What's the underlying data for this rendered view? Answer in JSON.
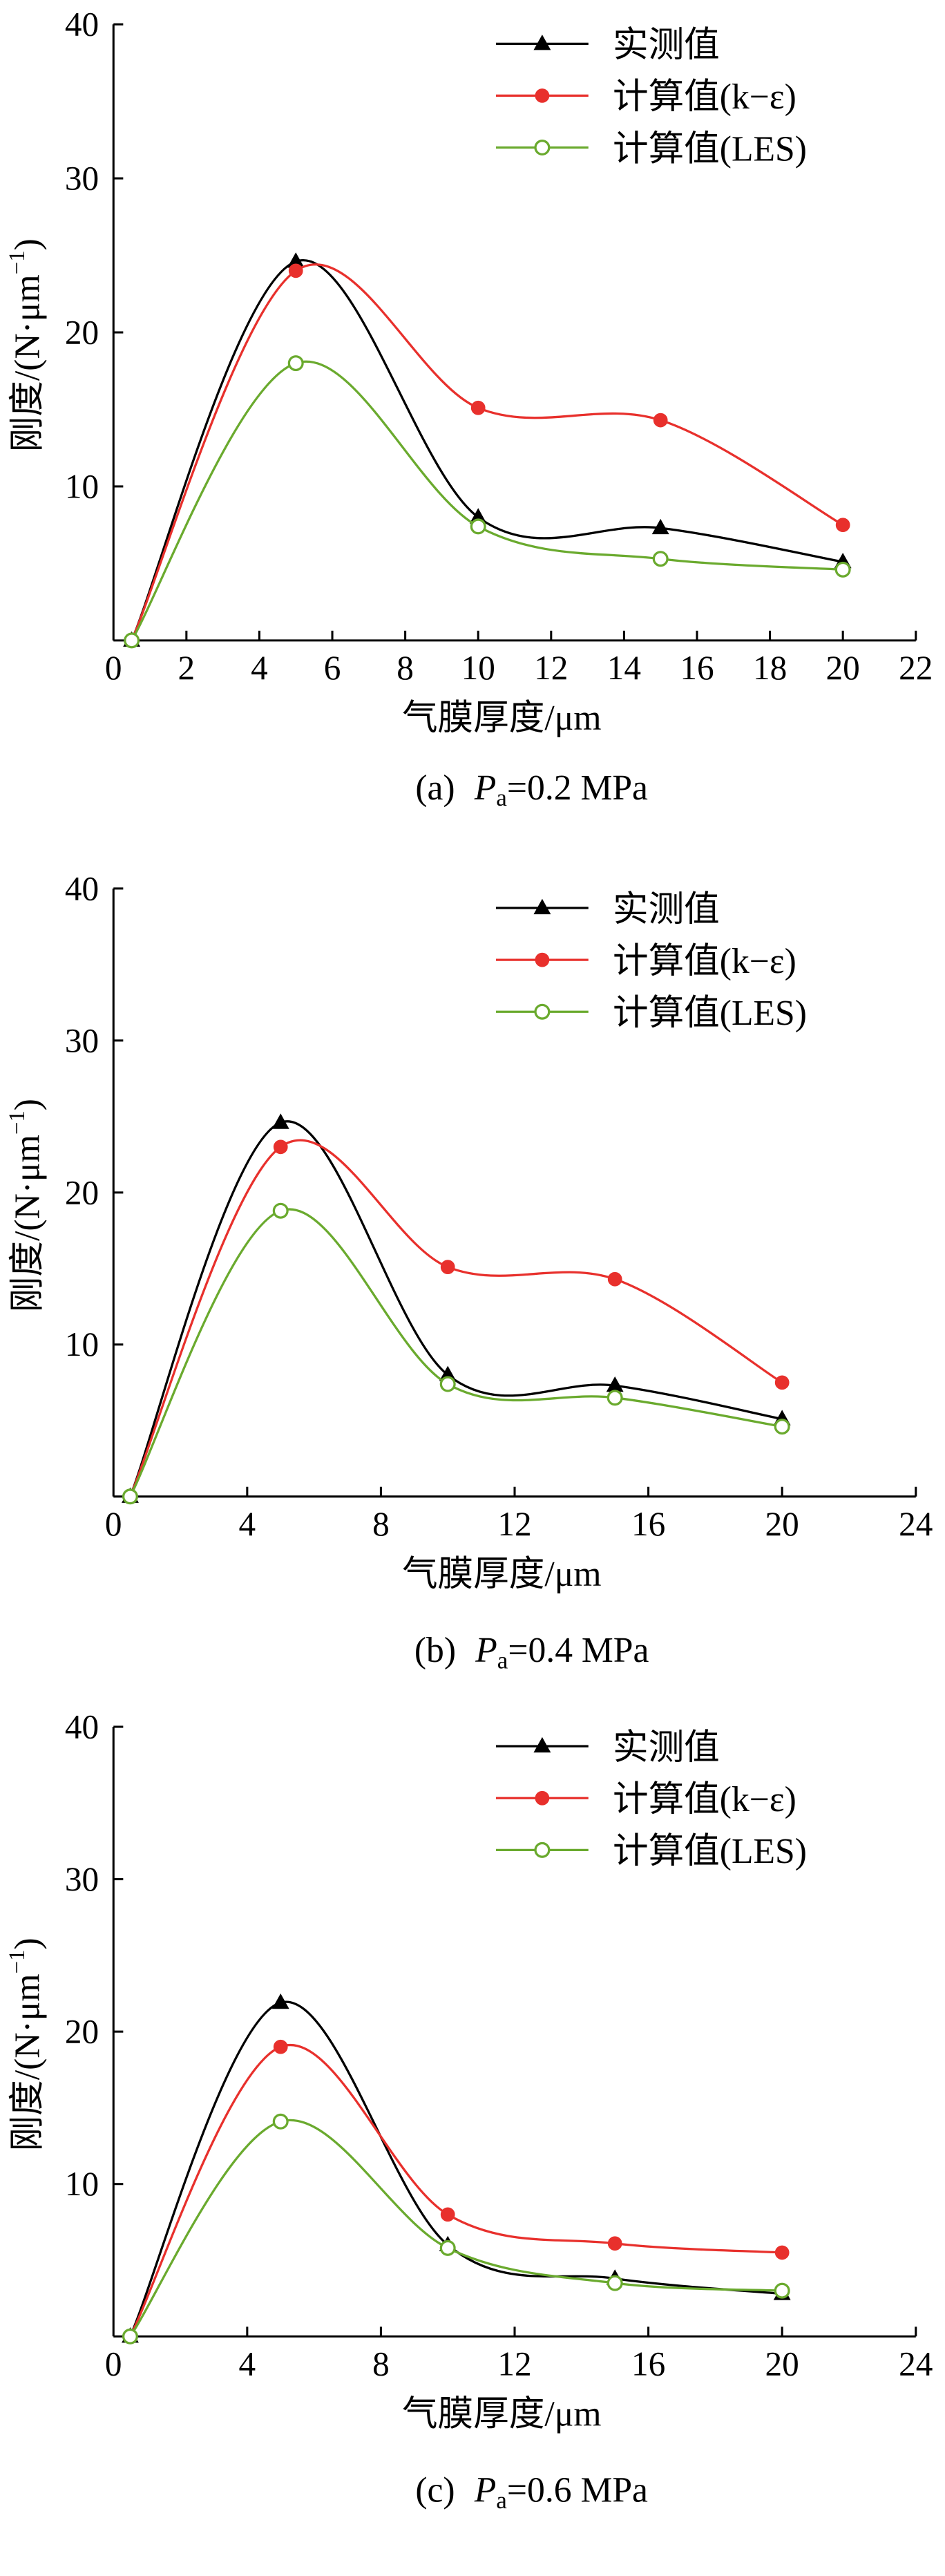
{
  "colors": {
    "measured": "#000000",
    "k_eps": "#e8302c",
    "les": "#6aaa2e",
    "axis": "#000000"
  },
  "chart_data": [
    {
      "type": "line",
      "caption_prefix": "(a)",
      "caption_var": "P",
      "caption_sub": "a",
      "caption_value": "=0.2 MPa",
      "xlabel": "气膜厚度/μm",
      "ylabel_main": "刚度/(N·μm",
      "ylabel_exp": "−1",
      "ylabel_close": ")",
      "xlim": [
        0,
        22
      ],
      "ylim": [
        0,
        40
      ],
      "xticks": [
        0,
        2,
        4,
        6,
        8,
        10,
        12,
        14,
        16,
        18,
        20,
        22
      ],
      "yticks": [
        10,
        20,
        30,
        40
      ],
      "legend": "top-right",
      "x": [
        0.5,
        5,
        10,
        15,
        20
      ],
      "series": [
        {
          "name": "实测值",
          "marker": "triangle",
          "color": "#000000",
          "values": [
            0,
            24.6,
            8.0,
            7.3,
            5.1
          ]
        },
        {
          "name": "计算值(k−ε)",
          "marker": "dot",
          "color": "#e8302c",
          "values": [
            0,
            24.0,
            15.1,
            14.3,
            7.5
          ]
        },
        {
          "name": "计算值(LES)",
          "marker": "circle",
          "color": "#6aaa2e",
          "values": [
            0,
            18.0,
            7.4,
            5.3,
            4.6
          ]
        }
      ]
    },
    {
      "type": "line",
      "caption_prefix": "(b)",
      "caption_var": "P",
      "caption_sub": "a",
      "caption_value": "=0.4 MPa",
      "xlabel": "气膜厚度/μm",
      "ylabel_main": "刚度/(N·μm",
      "ylabel_exp": "−1",
      "ylabel_close": ")",
      "xlim": [
        0,
        24
      ],
      "ylim": [
        0,
        40
      ],
      "xticks": [
        0,
        4,
        8,
        12,
        16,
        20,
        24
      ],
      "yticks": [
        10,
        20,
        30,
        40
      ],
      "legend": "top-right",
      "x": [
        0.5,
        5,
        10,
        15,
        20
      ],
      "series": [
        {
          "name": "实测值",
          "marker": "triangle",
          "color": "#000000",
          "values": [
            0,
            24.6,
            8.0,
            7.3,
            5.1
          ]
        },
        {
          "name": "计算值(k−ε)",
          "marker": "dot",
          "color": "#e8302c",
          "values": [
            0,
            23.0,
            15.1,
            14.3,
            7.5
          ]
        },
        {
          "name": "计算值(LES)",
          "marker": "circle",
          "color": "#6aaa2e",
          "values": [
            0,
            18.8,
            7.4,
            6.5,
            4.6
          ]
        }
      ]
    },
    {
      "type": "line",
      "caption_prefix": "(c)",
      "caption_var": "P",
      "caption_sub": "a",
      "caption_value": "=0.6 MPa",
      "xlabel": "气膜厚度/μm",
      "ylabel_main": "刚度/(N·μm",
      "ylabel_exp": "−1",
      "ylabel_close": ")",
      "xlim": [
        0,
        24
      ],
      "ylim": [
        0,
        40
      ],
      "xticks": [
        0,
        4,
        8,
        12,
        16,
        20,
        24
      ],
      "yticks": [
        10,
        20,
        30,
        40
      ],
      "legend": "top-right",
      "x": [
        0.5,
        5,
        10,
        15,
        20
      ],
      "series": [
        {
          "name": "实测值",
          "marker": "triangle",
          "color": "#000000",
          "values": [
            0,
            21.9,
            6.0,
            3.8,
            2.8
          ]
        },
        {
          "name": "计算值(k−ε)",
          "marker": "dot",
          "color": "#e8302c",
          "values": [
            0,
            19.0,
            8.0,
            6.1,
            5.5
          ]
        },
        {
          "name": "计算值(LES)",
          "marker": "circle",
          "color": "#6aaa2e",
          "values": [
            0,
            14.1,
            5.8,
            3.5,
            3.0
          ]
        }
      ]
    }
  ]
}
